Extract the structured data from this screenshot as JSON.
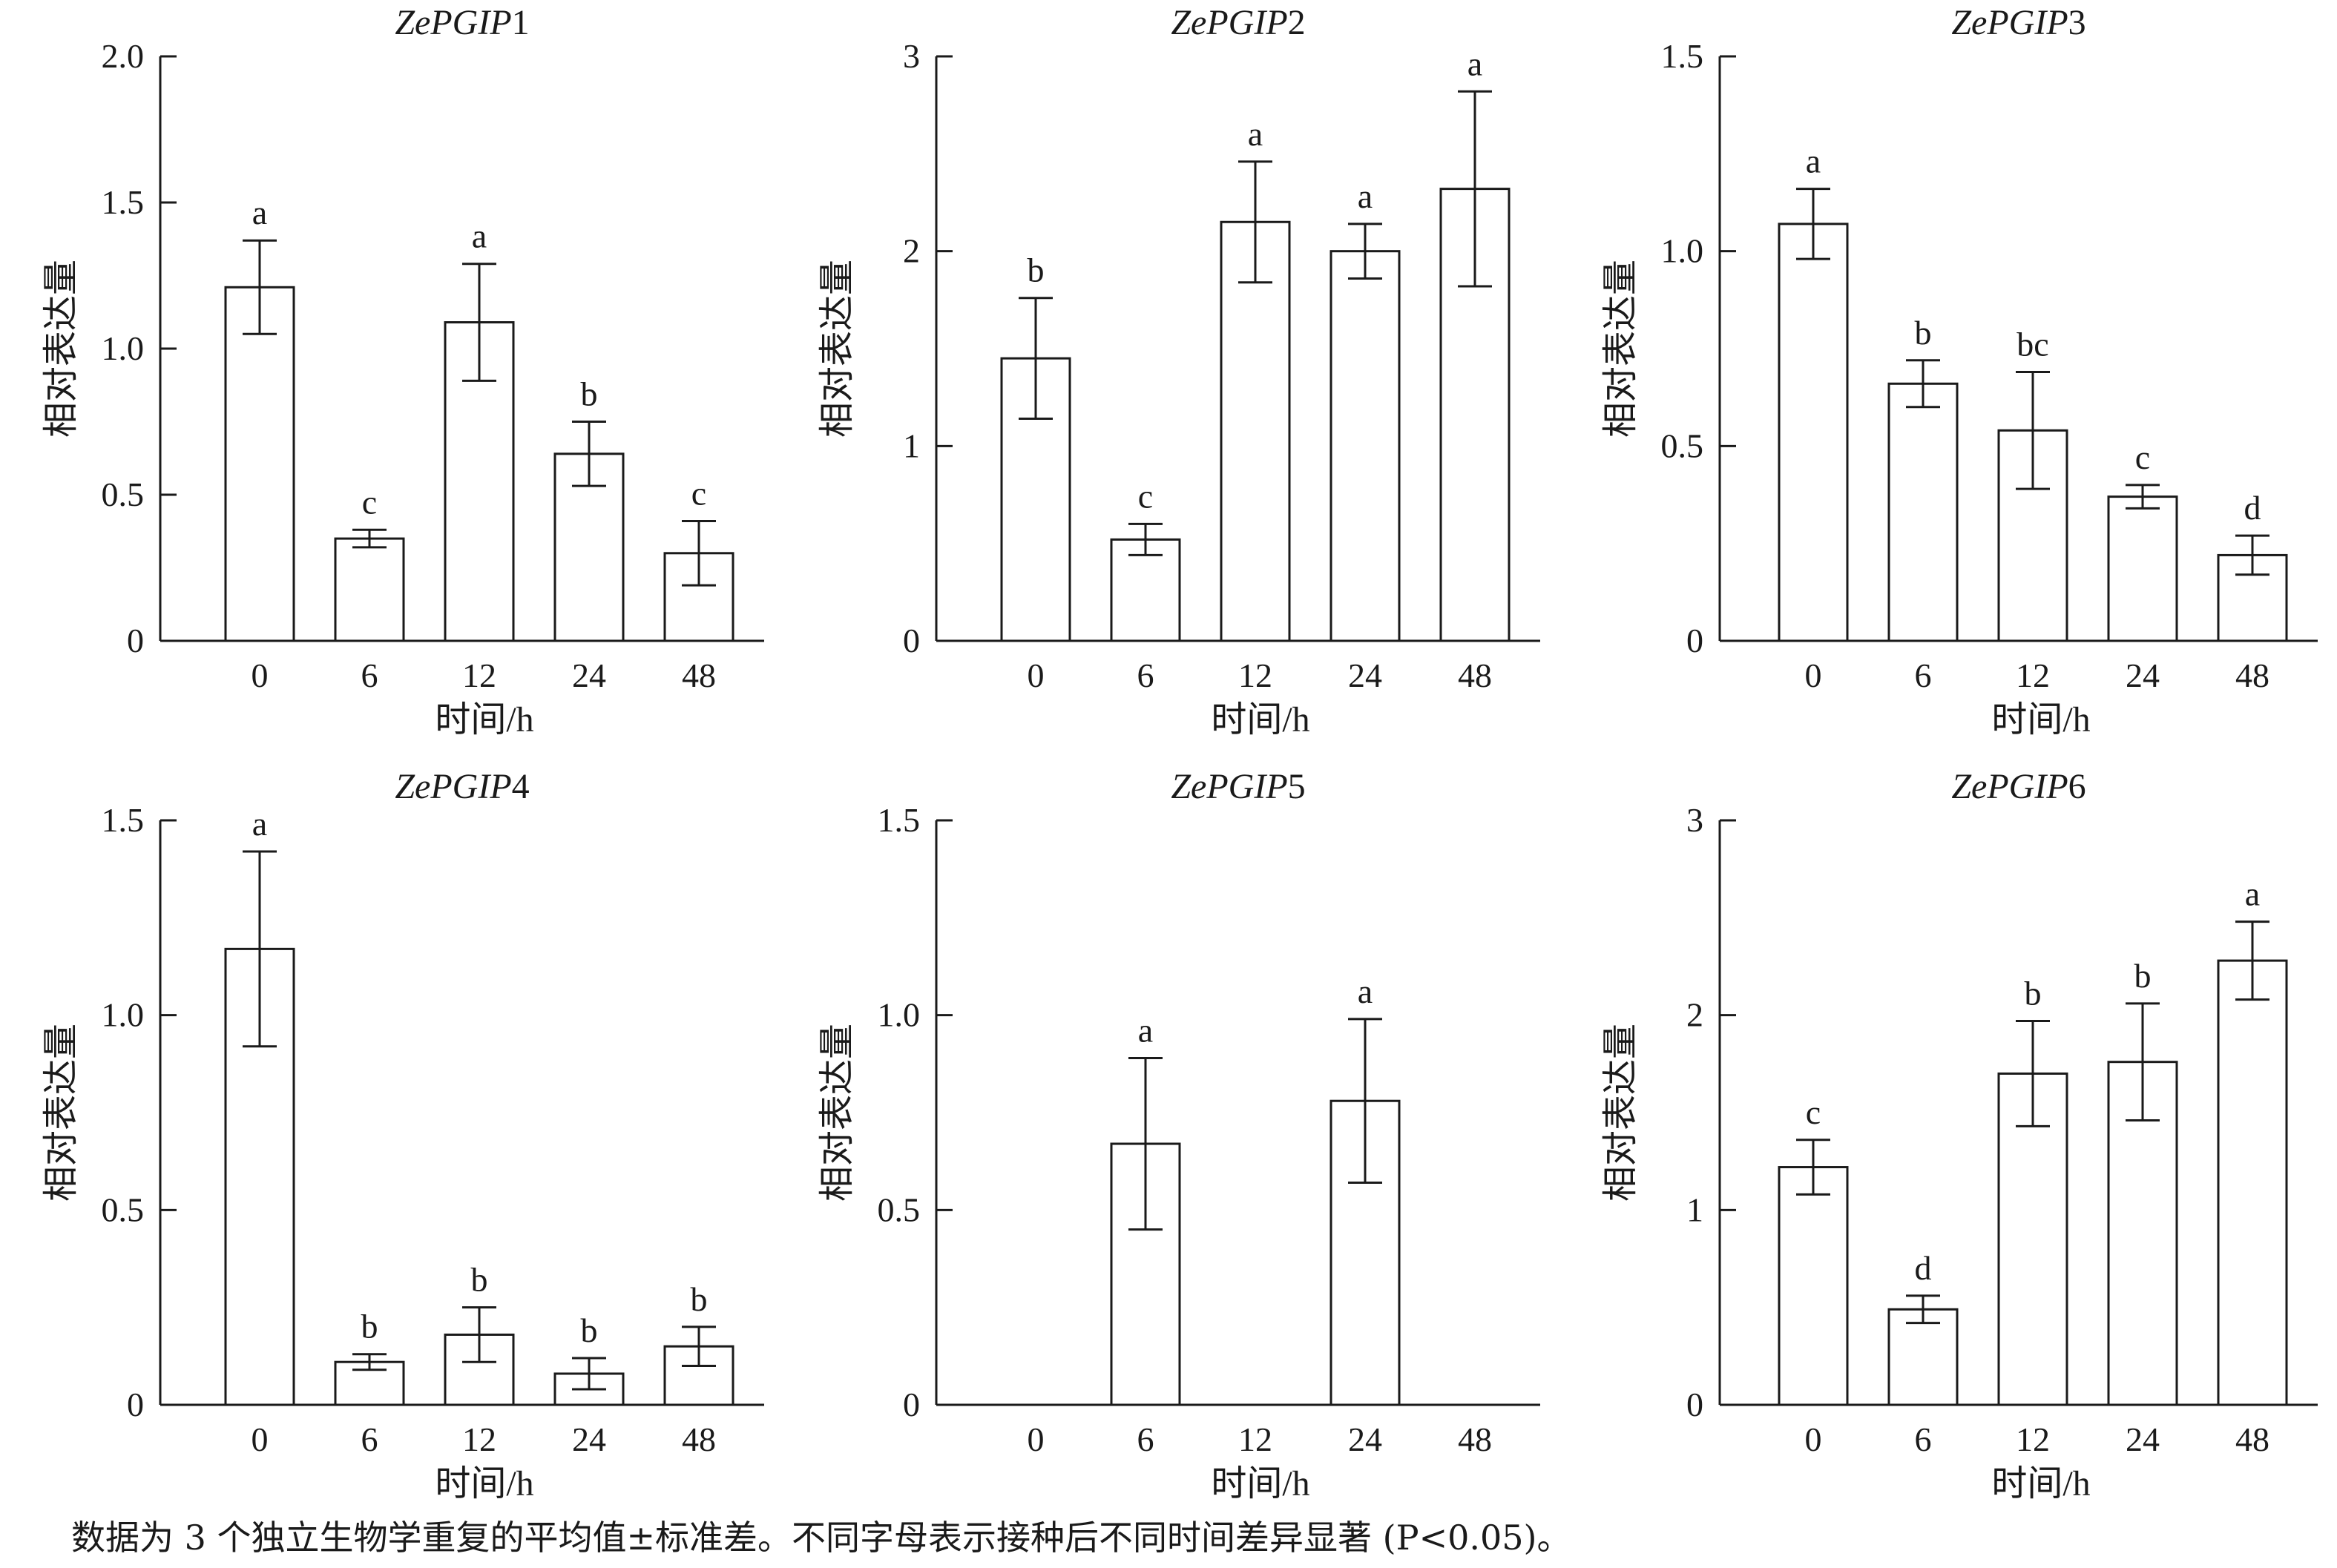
{
  "x_axis_title": "时间/h",
  "y_axis_title": "相对表达量",
  "footnote": "数据为 3 个独立生物学重复的平均值±标准差。不同字母表示接种后不同时间差异显著 (P<0.05)。",
  "chart_data": [
    {
      "type": "bar",
      "title_italic": "ZePGIP",
      "title_number": "1",
      "xlabel": "时间/h",
      "ylabel": "相对表达量",
      "categories": [
        "0",
        "6",
        "12",
        "24",
        "48"
      ],
      "values": [
        1.21,
        0.35,
        1.09,
        0.64,
        0.3
      ],
      "errors": [
        0.16,
        0.03,
        0.2,
        0.11,
        0.11
      ],
      "letters": [
        "a",
        "c",
        "a",
        "b",
        "c"
      ],
      "ylim": [
        0,
        2.0
      ],
      "yticks": [
        0,
        0.5,
        1.0,
        1.5,
        2.0
      ],
      "ytick_labels": [
        "0",
        "0.5",
        "1.0",
        "1.5",
        "2.0"
      ]
    },
    {
      "type": "bar",
      "title_italic": "ZePGIP",
      "title_number": "2",
      "xlabel": "时间/h",
      "ylabel": "相对表达量",
      "categories": [
        "0",
        "6",
        "12",
        "24",
        "48"
      ],
      "values": [
        1.45,
        0.52,
        2.15,
        2.0,
        2.32
      ],
      "errors": [
        0.31,
        0.08,
        0.31,
        0.14,
        0.5
      ],
      "letters": [
        "b",
        "c",
        "a",
        "a",
        "a"
      ],
      "ylim": [
        0,
        3
      ],
      "yticks": [
        0,
        1,
        2,
        3
      ],
      "ytick_labels": [
        "0",
        "1",
        "2",
        "3"
      ]
    },
    {
      "type": "bar",
      "title_italic": "ZePGIP",
      "title_number": "3",
      "xlabel": "时间/h",
      "ylabel": "相对表达量",
      "categories": [
        "0",
        "6",
        "12",
        "24",
        "48"
      ],
      "values": [
        1.07,
        0.66,
        0.54,
        0.37,
        0.22
      ],
      "errors": [
        0.09,
        0.06,
        0.15,
        0.03,
        0.05
      ],
      "letters": [
        "a",
        "b",
        "bc",
        "c",
        "d"
      ],
      "ylim": [
        0,
        1.5
      ],
      "yticks": [
        0,
        0.5,
        1.0,
        1.5
      ],
      "ytick_labels": [
        "0",
        "0.5",
        "1.0",
        "1.5"
      ]
    },
    {
      "type": "bar",
      "title_italic": "ZePGIP",
      "title_number": "4",
      "xlabel": "时间/h",
      "ylabel": "相对表达量",
      "categories": [
        "0",
        "6",
        "12",
        "24",
        "48"
      ],
      "values": [
        1.17,
        0.11,
        0.18,
        0.08,
        0.15
      ],
      "errors": [
        0.25,
        0.02,
        0.07,
        0.04,
        0.05
      ],
      "letters": [
        "a",
        "b",
        "b",
        "b",
        "b"
      ],
      "ylim": [
        0,
        1.5
      ],
      "yticks": [
        0,
        0.5,
        1.0,
        1.5
      ],
      "ytick_labels": [
        "0",
        "0.5",
        "1.0",
        "1.5"
      ]
    },
    {
      "type": "bar",
      "title_italic": "ZePGIP",
      "title_number": "5",
      "xlabel": "时间/h",
      "ylabel": "相对表达量",
      "categories": [
        "0",
        "6",
        "12",
        "24",
        "48"
      ],
      "values": [
        0,
        0.67,
        0,
        0.78,
        0
      ],
      "errors": [
        0,
        0.22,
        0,
        0.21,
        0
      ],
      "letters": [
        "",
        "a",
        "",
        "a",
        ""
      ],
      "ylim": [
        0,
        1.5
      ],
      "yticks": [
        0,
        0.5,
        1.0,
        1.5
      ],
      "ytick_labels": [
        "0",
        "0.5",
        "1.0",
        "1.5"
      ]
    },
    {
      "type": "bar",
      "title_italic": "ZePGIP",
      "title_number": "6",
      "xlabel": "时间/h",
      "ylabel": "相对表达量",
      "categories": [
        "0",
        "6",
        "12",
        "24",
        "48"
      ],
      "values": [
        1.22,
        0.49,
        1.7,
        1.76,
        2.28
      ],
      "errors": [
        0.14,
        0.07,
        0.27,
        0.3,
        0.2
      ],
      "letters": [
        "c",
        "d",
        "b",
        "b",
        "a"
      ],
      "ylim": [
        0,
        3
      ],
      "yticks": [
        0,
        1,
        2,
        3
      ],
      "ytick_labels": [
        "0",
        "1",
        "2",
        "3"
      ]
    }
  ]
}
